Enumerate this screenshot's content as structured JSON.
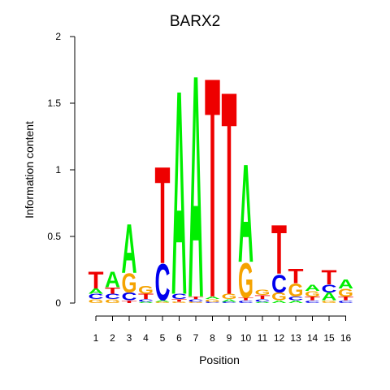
{
  "chart_data": {
    "type": "sequence-logo",
    "title": "BARX2",
    "xlabel": "Position",
    "ylabel": "Information content",
    "ylim": [
      0,
      2
    ],
    "y_ticks": [
      "0",
      "0.5",
      "1",
      "1.5",
      "2"
    ],
    "x_ticks": [
      "1",
      "2",
      "3",
      "4",
      "5",
      "6",
      "7",
      "8",
      "9",
      "10",
      "11",
      "12",
      "13",
      "14",
      "15",
      "16"
    ],
    "colors": {
      "A": "#00ee00",
      "C": "#0000ee",
      "G": "#f5a300",
      "T": "#ee0000"
    },
    "positions": [
      [
        [
          "G",
          0.03
        ],
        [
          "C",
          0.04
        ],
        [
          "A",
          0.04
        ],
        [
          "T",
          0.13
        ]
      ],
      [
        [
          "G",
          0.03
        ],
        [
          "C",
          0.04
        ],
        [
          "T",
          0.05
        ],
        [
          "A",
          0.12
        ]
      ],
      [
        [
          "T",
          0.02
        ],
        [
          "C",
          0.06
        ],
        [
          "G",
          0.15
        ],
        [
          "A",
          0.38
        ]
      ],
      [
        [
          "A",
          0.01
        ],
        [
          "C",
          0.02
        ],
        [
          "T",
          0.04
        ],
        [
          "G",
          0.06
        ]
      ],
      [
        [
          "G",
          0.01
        ],
        [
          "A",
          0.01
        ],
        [
          "C",
          0.28
        ],
        [
          "T",
          0.75
        ]
      ],
      [
        [
          "G",
          0.01
        ],
        [
          "T",
          0.02
        ],
        [
          "C",
          0.04
        ],
        [
          "A",
          1.58
        ]
      ],
      [
        [
          "G",
          0.01
        ],
        [
          "C",
          0.02
        ],
        [
          "T",
          0.02
        ],
        [
          "A",
          1.72
        ]
      ],
      [
        [
          "C",
          0.01
        ],
        [
          "G",
          0.02
        ],
        [
          "A",
          0.02
        ],
        [
          "T",
          1.7
        ]
      ],
      [
        [
          "C",
          0.01
        ],
        [
          "A",
          0.02
        ],
        [
          "G",
          0.04
        ],
        [
          "T",
          1.57
        ]
      ],
      [
        [
          "C",
          0.02
        ],
        [
          "T",
          0.02
        ],
        [
          "G",
          0.27
        ],
        [
          "A",
          0.76
        ]
      ],
      [
        [
          "A",
          0.01
        ],
        [
          "C",
          0.02
        ],
        [
          "T",
          0.03
        ],
        [
          "G",
          0.04
        ]
      ],
      [
        [
          "A",
          0.02
        ],
        [
          "G",
          0.06
        ],
        [
          "C",
          0.14
        ],
        [
          "T",
          0.38
        ]
      ],
      [
        [
          "A",
          0.02
        ],
        [
          "C",
          0.03
        ],
        [
          "G",
          0.1
        ],
        [
          "T",
          0.11
        ]
      ],
      [
        [
          "C",
          0.02
        ],
        [
          "T",
          0.03
        ],
        [
          "G",
          0.04
        ],
        [
          "A",
          0.05
        ]
      ],
      [
        [
          "G",
          0.02
        ],
        [
          "A",
          0.06
        ],
        [
          "C",
          0.06
        ],
        [
          "T",
          0.11
        ]
      ],
      [
        [
          "C",
          0.02
        ],
        [
          "T",
          0.03
        ],
        [
          "G",
          0.06
        ],
        [
          "A",
          0.07
        ]
      ]
    ]
  }
}
